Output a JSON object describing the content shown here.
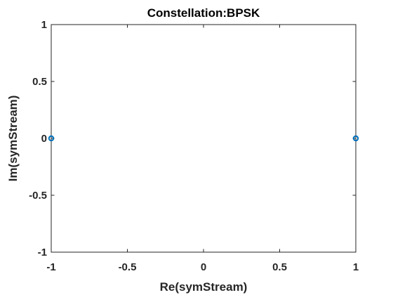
{
  "chart_data": {
    "type": "scatter",
    "title": "Constellation:BPSK",
    "xlabel": "Re(symStream)",
    "ylabel": "Im(symStream)",
    "xlim": [
      -1,
      1
    ],
    "ylim": [
      -1,
      1
    ],
    "grid": false,
    "box": true,
    "xticks": [
      -1,
      -0.5,
      0,
      0.5,
      1
    ],
    "xtick_labels": [
      "-1",
      "-0.5",
      "0",
      "0.5",
      "1"
    ],
    "yticks": [
      -1,
      -0.5,
      0,
      0.5,
      1
    ],
    "ytick_labels": [
      "-1",
      "-0.5",
      "0",
      "0.5",
      "1"
    ],
    "series": [
      {
        "name": "symStream",
        "marker": "o",
        "color": "#0072BD",
        "points": [
          {
            "x": -1,
            "y": 0
          },
          {
            "x": 1,
            "y": 0
          }
        ]
      }
    ]
  }
}
